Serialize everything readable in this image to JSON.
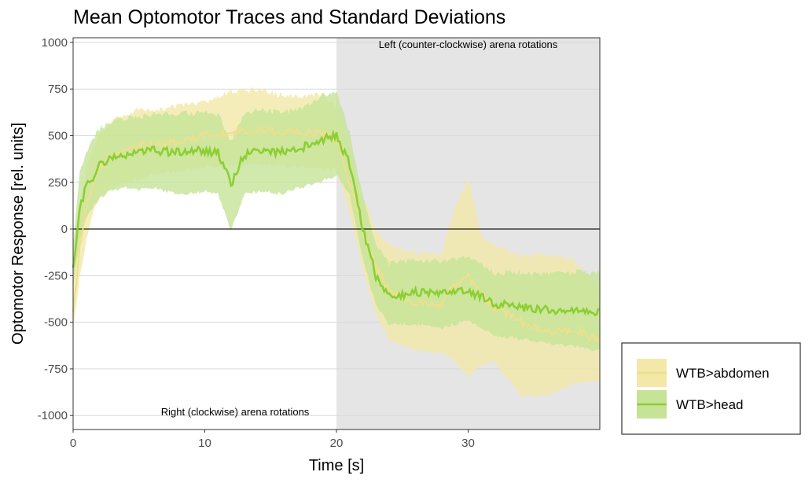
{
  "chart_data": {
    "type": "line",
    "title": "Mean Optomotor Traces and Standard Deviations",
    "xlabel": "Time [s]",
    "ylabel": "Optomotor Response [rel. units]",
    "xlim": [
      0,
      40
    ],
    "ylim": [
      -1075,
      1025
    ],
    "x_ticks": [
      0,
      10,
      20,
      30
    ],
    "x_tick_labels": [
      "0",
      "10",
      "20",
      "30"
    ],
    "y_ticks": [
      1000,
      750,
      500,
      250,
      0,
      -250,
      -500,
      -750,
      -1000
    ],
    "y_tick_labels": [
      "1000",
      "750",
      "500",
      "250",
      "0",
      "-250",
      "-500",
      "-750",
      "-1000"
    ],
    "grid": true,
    "zero_line": true,
    "legend_position": "right",
    "shaded_region": {
      "x_start": 20,
      "x_end": 40,
      "color": "#e5e5e5"
    },
    "annotations": [
      {
        "text": "Left (counter-clockwise) arena rotations",
        "x": 30,
        "y": 970
      },
      {
        "text": "Right (clockwise) arena rotations",
        "x": 12.3,
        "y": -1000
      }
    ],
    "series": [
      {
        "name": "WTB>abdomen",
        "line_color": "#eedf8c",
        "band_color": "#f3e8a8",
        "x": [
          0,
          0.5,
          1,
          1.5,
          2,
          3,
          4,
          5,
          6,
          8,
          10,
          12,
          14,
          16,
          18,
          19,
          20,
          21,
          22,
          23,
          24,
          26,
          28,
          29,
          30,
          31,
          32,
          34,
          36,
          38,
          40
        ],
        "mean": [
          -450,
          -100,
          120,
          250,
          330,
          390,
          420,
          440,
          450,
          470,
          500,
          520,
          530,
          520,
          520,
          510,
          480,
          250,
          0,
          -200,
          -330,
          -390,
          -400,
          -300,
          -250,
          -350,
          -420,
          -500,
          -560,
          -540,
          -600
        ],
        "sd_low": [
          -520,
          -250,
          -50,
          100,
          180,
          230,
          260,
          280,
          300,
          320,
          340,
          350,
          360,
          350,
          340,
          330,
          330,
          100,
          -200,
          -450,
          -580,
          -640,
          -650,
          -700,
          -780,
          -720,
          -700,
          -880,
          -880,
          -820,
          -800
        ],
        "sd_high": [
          -300,
          80,
          300,
          420,
          500,
          560,
          600,
          620,
          620,
          640,
          660,
          720,
          730,
          700,
          700,
          700,
          640,
          400,
          150,
          -20,
          -100,
          -150,
          -150,
          100,
          250,
          -50,
          -100,
          -170,
          -150,
          -180,
          -350
        ]
      },
      {
        "name": "WTB>head",
        "line_color": "#8ccf33",
        "band_color": "#c6e397",
        "x": [
          0,
          0.5,
          1,
          1.5,
          2,
          3,
          4,
          5,
          6,
          8,
          10,
          11,
          12,
          13,
          14,
          16,
          18,
          19,
          20,
          21,
          22,
          23,
          24,
          26,
          28,
          30,
          32,
          34,
          36,
          38,
          40
        ],
        "mean": [
          -220,
          100,
          230,
          280,
          340,
          390,
          400,
          410,
          420,
          410,
          420,
          410,
          240,
          400,
          420,
          410,
          450,
          480,
          500,
          350,
          0,
          -250,
          -360,
          -340,
          -350,
          -330,
          -400,
          -420,
          -430,
          -440,
          -440
        ],
        "sd_low": [
          -300,
          -50,
          80,
          130,
          180,
          220,
          230,
          220,
          230,
          200,
          210,
          200,
          0,
          200,
          210,
          200,
          250,
          270,
          300,
          200,
          -150,
          -400,
          -500,
          -500,
          -520,
          -480,
          -560,
          -580,
          -600,
          -620,
          -640
        ],
        "sd_high": [
          -100,
          280,
          400,
          460,
          520,
          560,
          580,
          580,
          600,
          600,
          610,
          600,
          450,
          600,
          620,
          610,
          650,
          700,
          720,
          500,
          150,
          -100,
          -200,
          -180,
          -190,
          -170,
          -250,
          -250,
          -260,
          -250,
          -250
        ]
      }
    ]
  }
}
